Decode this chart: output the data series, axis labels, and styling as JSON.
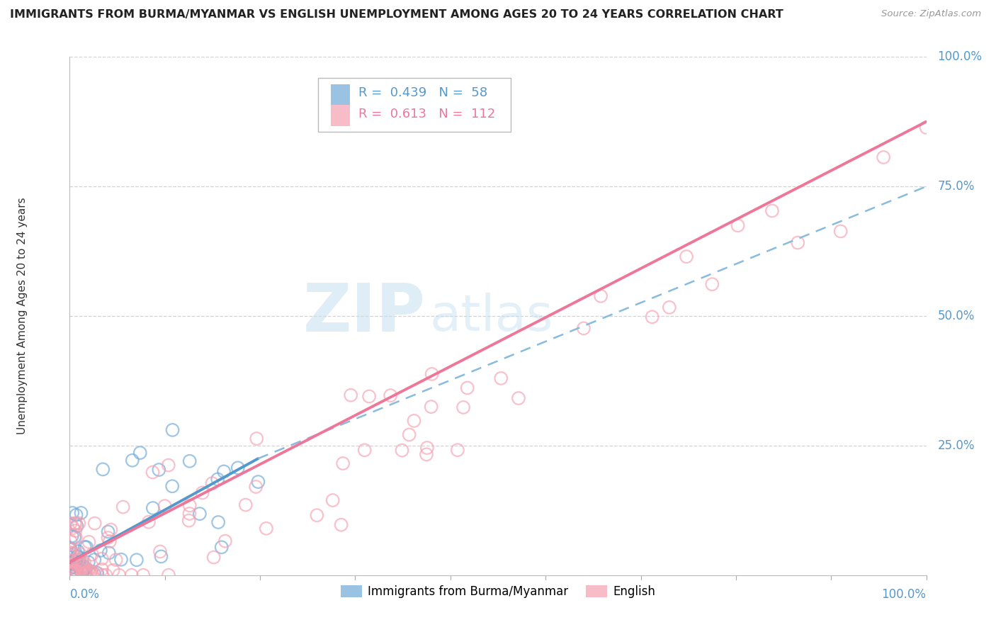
{
  "title": "IMMIGRANTS FROM BURMA/MYANMAR VS ENGLISH UNEMPLOYMENT AMONG AGES 20 TO 24 YEARS CORRELATION CHART",
  "source": "Source: ZipAtlas.com",
  "ylabel": "Unemployment Among Ages 20 to 24 years",
  "xlim": [
    0,
    1.0
  ],
  "ylim": [
    0,
    1.0
  ],
  "ytick_positions": [
    0.25,
    0.5,
    0.75,
    1.0
  ],
  "ytick_labels": [
    "25.0%",
    "50.0%",
    "75.0%",
    "100.0%"
  ],
  "grid_color": "#c8c8c8",
  "background_color": "#ffffff",
  "watermark_zip": "ZIP",
  "watermark_atlas": "atlas",
  "legend_blue_label": "Immigrants from Burma/Myanmar",
  "legend_pink_label": "English",
  "blue_R": "0.439",
  "blue_N": "58",
  "pink_R": "0.613",
  "pink_N": "112",
  "blue_color": "#6ea8d8",
  "pink_color": "#f5a0b0",
  "blue_line_color": "#5599cc",
  "pink_line_color": "#ee7799",
  "blue_dashed_color": "#88bbdd",
  "title_color": "#222222",
  "source_color": "#999999",
  "axis_label_color": "#333333",
  "tick_label_color": "#5599cc",
  "legend_R_color": "#5599cc",
  "legend_N_color": "#5599cc"
}
